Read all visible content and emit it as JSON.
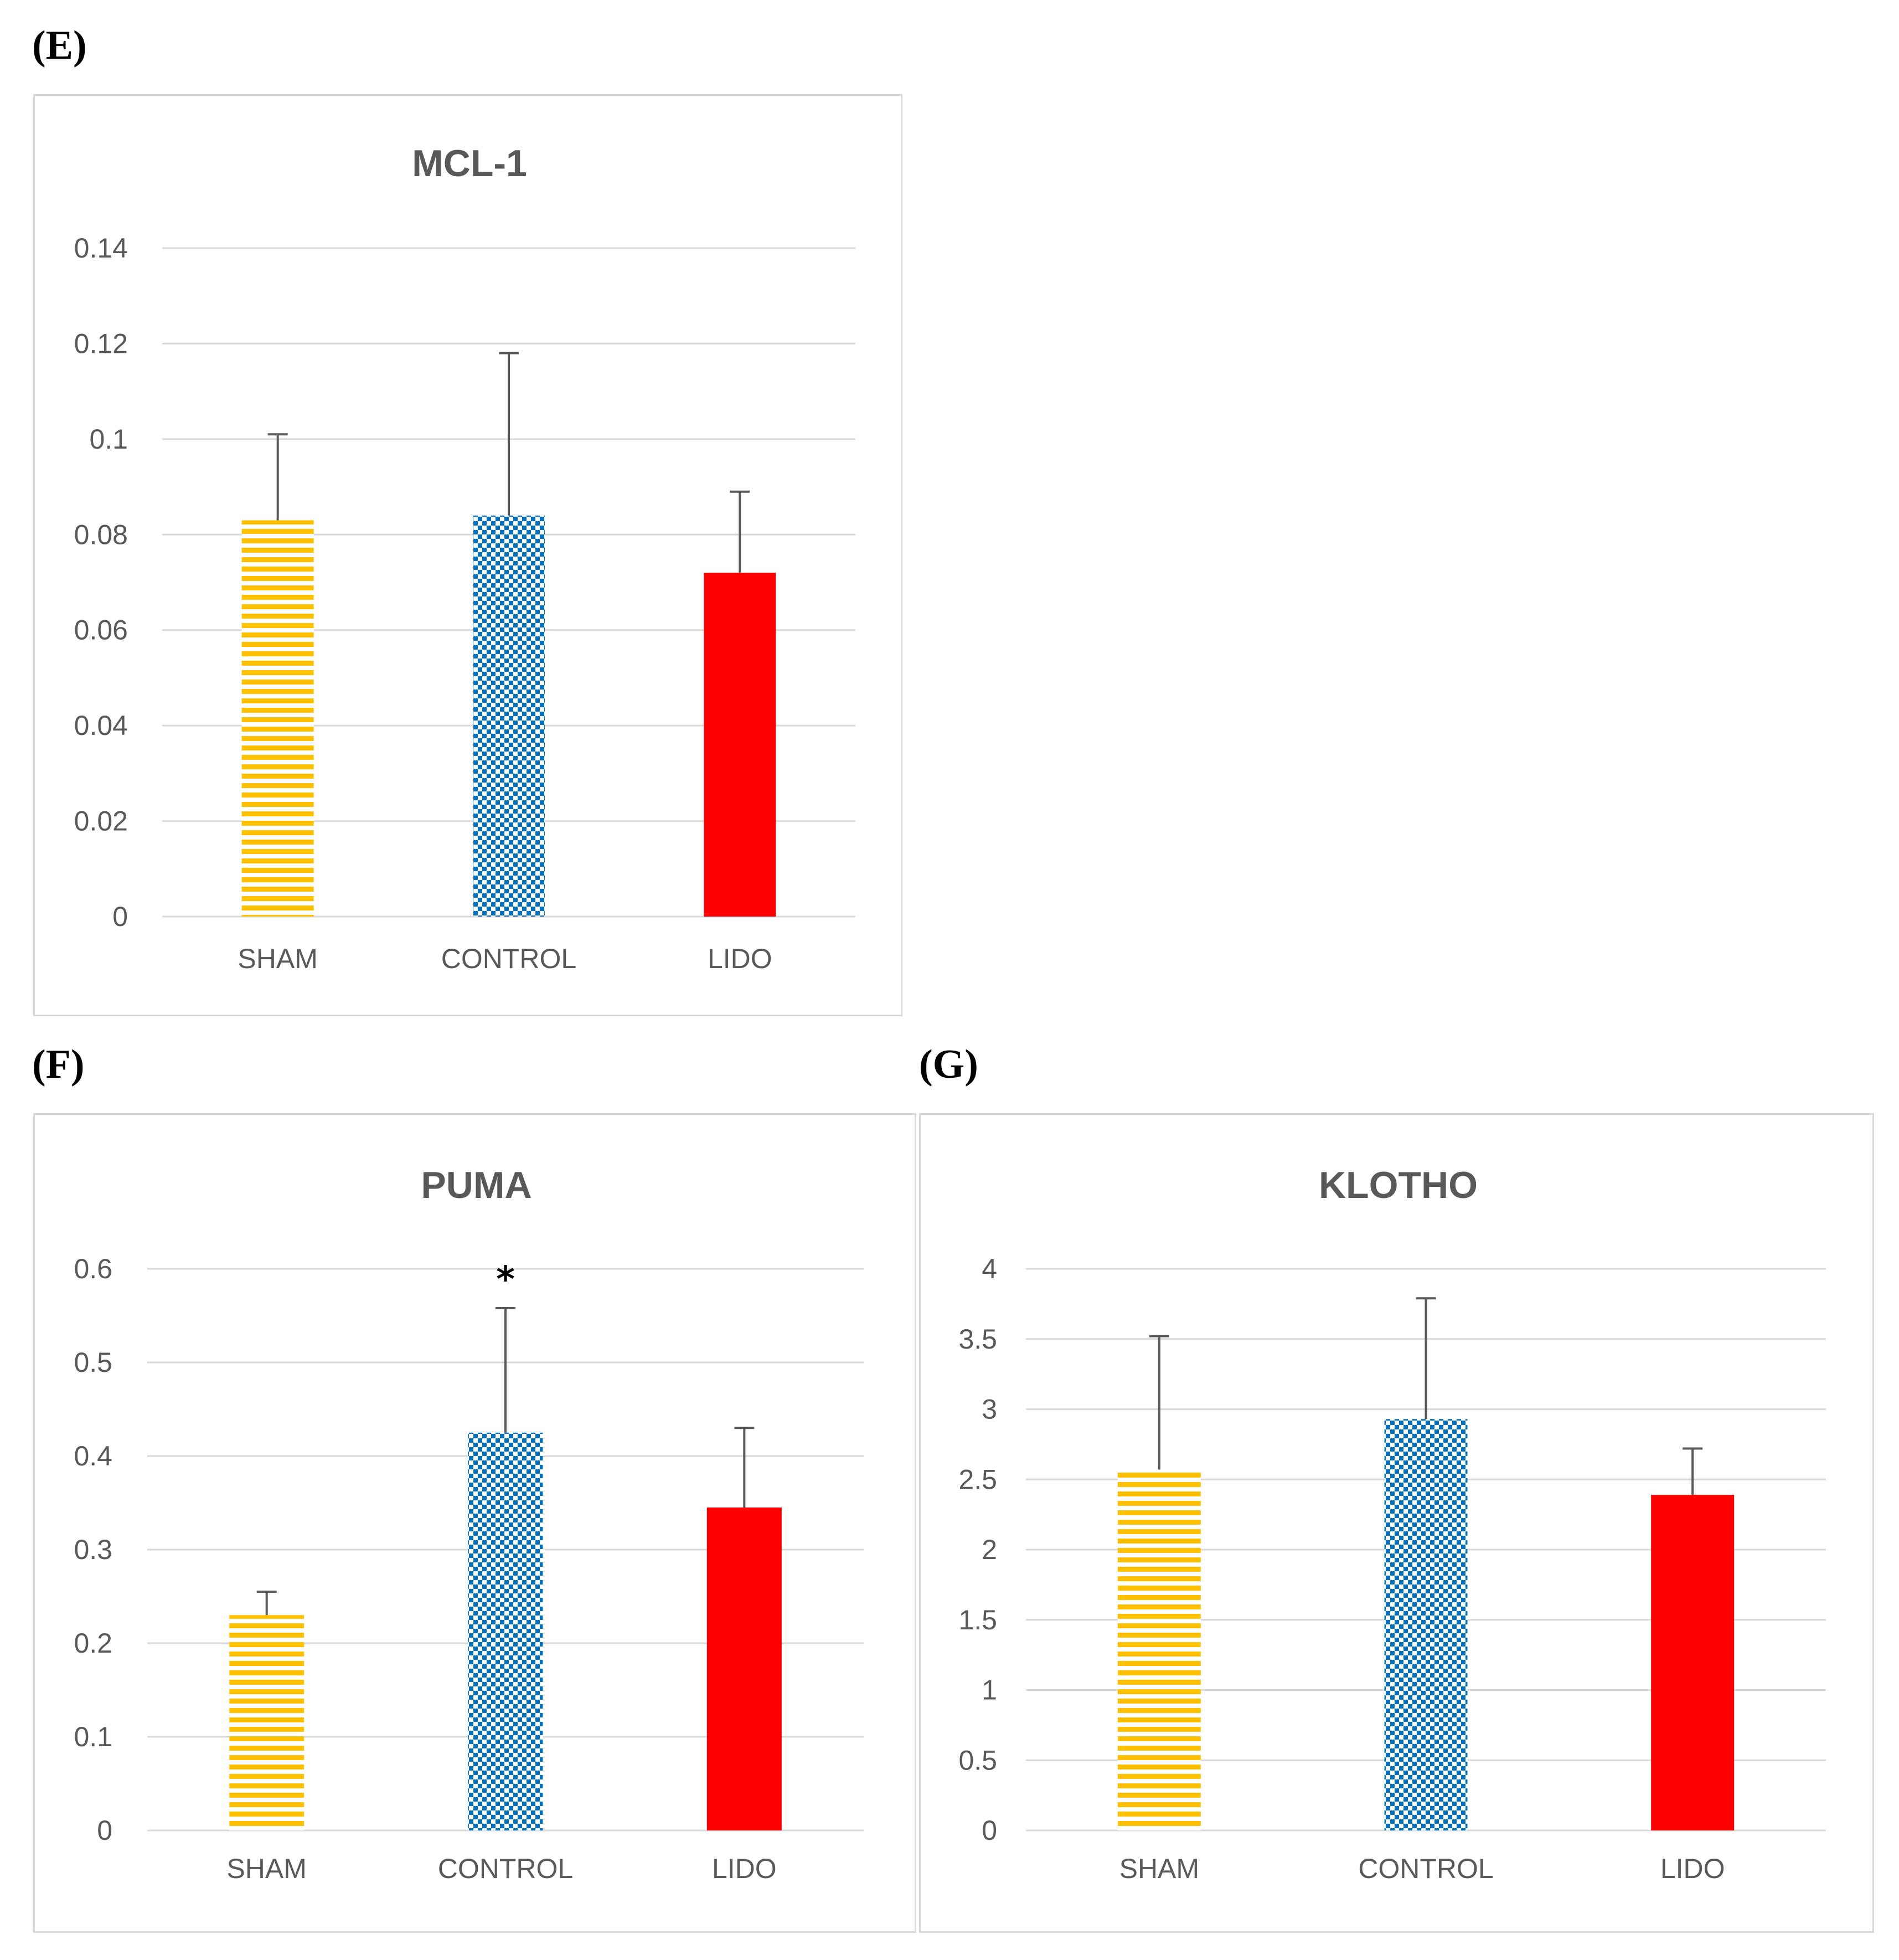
{
  "chart_data": [
    {
      "panel": "(E)",
      "type": "bar",
      "title": "MCL-1",
      "categories": [
        "SHAM",
        "CONTROL",
        "LIDO"
      ],
      "values": [
        0.083,
        0.084,
        0.072
      ],
      "errors": [
        0.018,
        0.034,
        0.017
      ],
      "ylim": [
        0,
        0.14
      ],
      "yticks": [
        0,
        0.02,
        0.04,
        0.06,
        0.08,
        0.1,
        0.12,
        0.14
      ],
      "ytick_labels": [
        "0",
        "0.02",
        "0.04",
        "0.06",
        "0.08",
        "0.1",
        "0.12",
        "0.14"
      ],
      "annotations": [
        "",
        "",
        ""
      ],
      "grid": true
    },
    {
      "panel": "(F)",
      "type": "bar",
      "title": "PUMA",
      "categories": [
        "SHAM",
        "CONTROL",
        "LIDO"
      ],
      "values": [
        0.23,
        0.425,
        0.345
      ],
      "errors": [
        0.025,
        0.133,
        0.085
      ],
      "ylim": [
        0,
        0.6
      ],
      "yticks": [
        0,
        0.1,
        0.2,
        0.3,
        0.4,
        0.5,
        0.6
      ],
      "ytick_labels": [
        "0",
        "0.1",
        "0.2",
        "0.3",
        "0.4",
        "0.5",
        "0.6"
      ],
      "annotations": [
        "",
        "*",
        ""
      ],
      "grid": true
    },
    {
      "panel": "(G)",
      "type": "bar",
      "title": "KLOTHO",
      "categories": [
        "SHAM",
        "CONTROL",
        "LIDO"
      ],
      "values": [
        2.57,
        2.93,
        2.39
      ],
      "errors": [
        0.95,
        0.86,
        0.33
      ],
      "ylim": [
        0,
        4
      ],
      "yticks": [
        0,
        0.5,
        1,
        1.5,
        2,
        2.5,
        3,
        3.5,
        4
      ],
      "ytick_labels": [
        "0",
        "0.5",
        "1",
        "1.5",
        "2",
        "2.5",
        "3",
        "3.5",
        "4"
      ],
      "annotations": [
        "",
        "",
        ""
      ],
      "grid": true
    }
  ],
  "series_colors": {
    "SHAM": "#ffc000",
    "CONTROL": "#0070c0",
    "LIDO": "#ff0000"
  },
  "bar_fills": [
    "hstripe",
    "checker",
    "solid"
  ]
}
